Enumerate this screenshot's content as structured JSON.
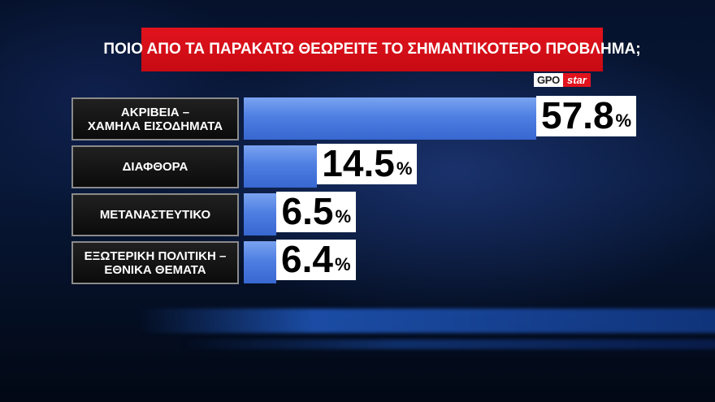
{
  "title": "ΠΟΙΟ ΑΠΟ ΤΑ ΠΑΡΑΚΑΤΩ ΘΕΩΡΕΙΤΕ ΤΟ ΣΗΜΑΝΤΙΚΟΤΕΡΟ ΠΡΟΒΛΗΜΑ;",
  "logo": {
    "left": "GPO",
    "right": "star"
  },
  "colors": {
    "title_bg": "#e1131d",
    "bar": "#4f7fe2",
    "label_bg": "#141414",
    "value_bg": "#ffffff"
  },
  "chart_data": {
    "type": "bar",
    "orientation": "horizontal",
    "title": "ΠΟΙΟ ΑΠΟ ΤΑ ΠΑΡΑΚΑΤΩ ΘΕΩΡΕΙΤΕ ΤΟ ΣΗΜΑΝΤΙΚΟΤΕΡΟ ΠΡΟΒΛΗΜΑ;",
    "categories": [
      "ΑΚΡΙΒΕΙΑ –\nΧΑΜΗΛΑ ΕΙΣΟΔΗΜΑΤΑ",
      "ΔΙΑΦΘΟΡΑ",
      "ΜΕΤΑΝΑΣΤΕΥΤΙΚΟ",
      "ΕΞΩΤΕΡΙΚΗ ΠΟΛΙΤΙΚΗ –\nΕΘΝΙΚΑ ΘΕΜΑΤΑ"
    ],
    "values": [
      57.8,
      14.5,
      6.5,
      6.4
    ],
    "value_labels": [
      "57.8",
      "14.5",
      "6.5",
      "6.4"
    ],
    "unit": "%",
    "xlim": [
      0,
      57.8
    ],
    "grid": false
  }
}
